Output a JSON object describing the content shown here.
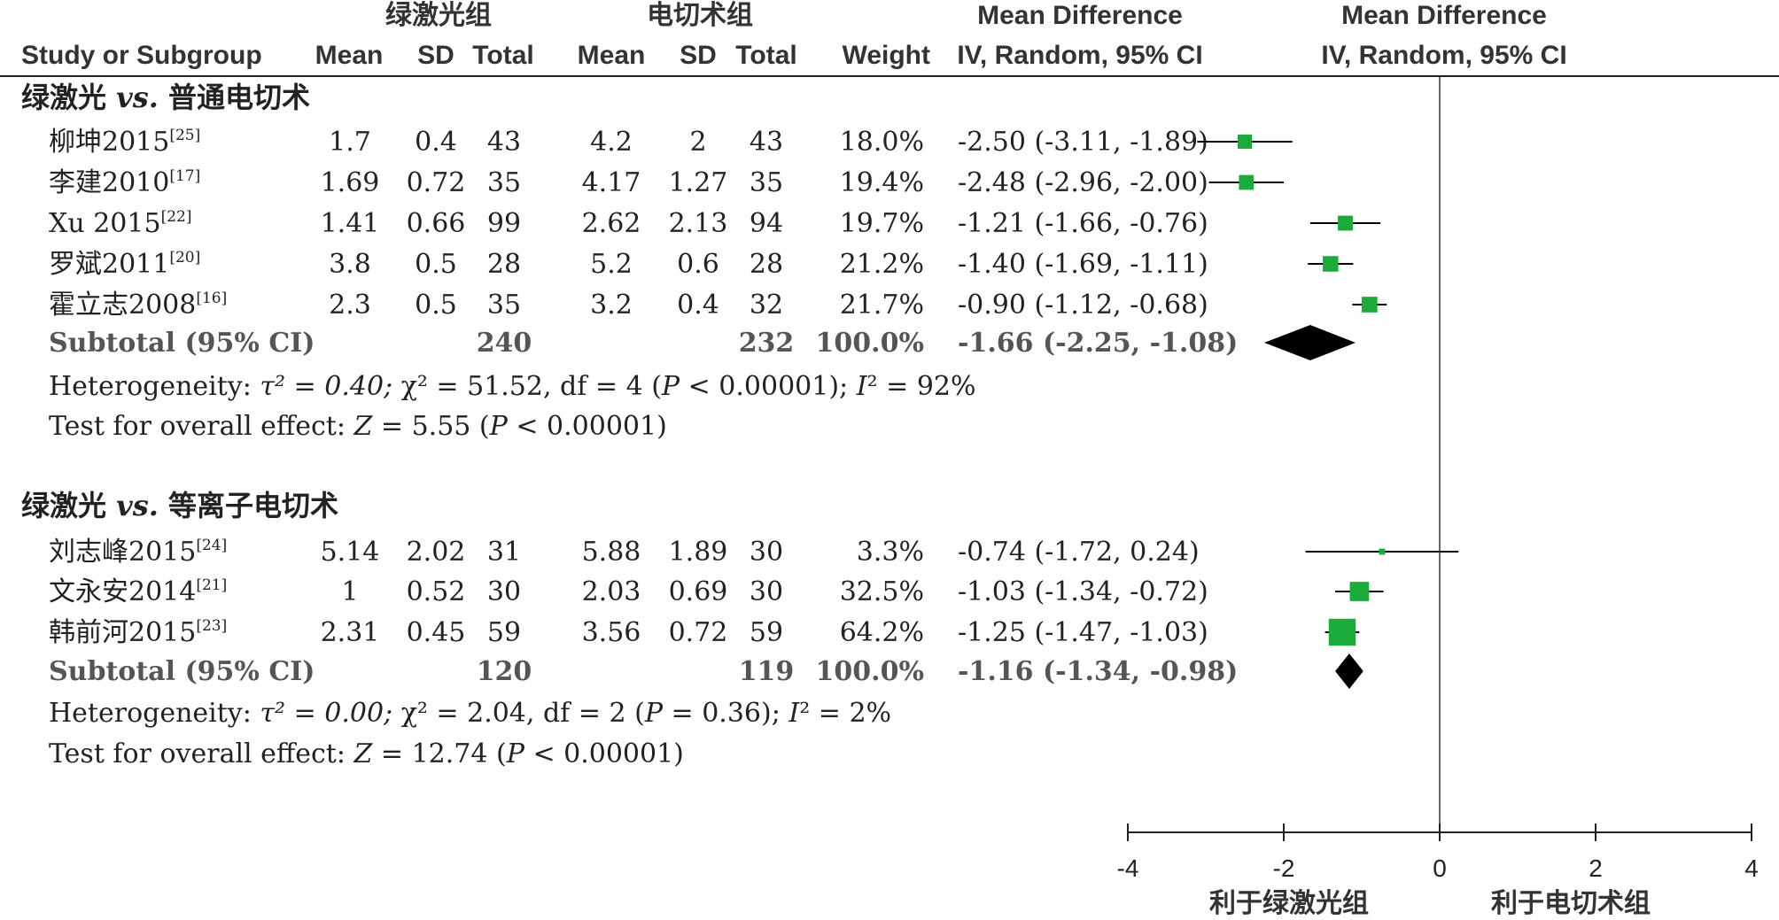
{
  "header": {
    "study_col": "Study or Subgroup",
    "group1_name": "绿激光组",
    "group2_name": "电切术组",
    "mean": "Mean",
    "sd": "SD",
    "total": "Total",
    "weight": "Weight",
    "md_title": "Mean Difference",
    "md_method": "IV, Random, 95% CI",
    "plot_title": "Mean Difference",
    "plot_method": "IV, Random, 95% CI"
  },
  "groups": [
    {
      "title_pre": "绿激光 ",
      "title_vs": "vs.",
      "title_post": " 普通电切术",
      "studies": [
        {
          "name": "柳坤2015",
          "ref": "[25]",
          "m1": "1.7",
          "sd1": "0.4",
          "n1": "43",
          "m2": "4.2",
          "sd2": "2",
          "n2": "43",
          "weight": "18.0%",
          "ci": "-2.50 (-3.11, -1.89)",
          "md": -2.5,
          "lo": -3.11,
          "hi": -1.89,
          "w": 18.0
        },
        {
          "name": "李建2010",
          "ref": "[17]",
          "m1": "1.69",
          "sd1": "0.72",
          "n1": "35",
          "m2": "4.17",
          "sd2": "1.27",
          "n2": "35",
          "weight": "19.4%",
          "ci": "-2.48 (-2.96, -2.00)",
          "md": -2.48,
          "lo": -2.96,
          "hi": -2.0,
          "w": 19.4
        },
        {
          "name": "Xu 2015",
          "ref": "[22]",
          "m1": "1.41",
          "sd1": "0.66",
          "n1": "99",
          "m2": "2.62",
          "sd2": "2.13",
          "n2": "94",
          "weight": "19.7%",
          "ci": "-1.21 (-1.66, -0.76)",
          "md": -1.21,
          "lo": -1.66,
          "hi": -0.76,
          "w": 19.7
        },
        {
          "name": "罗斌2011",
          "ref": "[20]",
          "m1": "3.8",
          "sd1": "0.5",
          "n1": "28",
          "m2": "5.2",
          "sd2": "0.6",
          "n2": "28",
          "weight": "21.2%",
          "ci": "-1.40 (-1.69, -1.11)",
          "md": -1.4,
          "lo": -1.69,
          "hi": -1.11,
          "w": 21.2
        },
        {
          "name": "霍立志2008",
          "ref": "[16]",
          "m1": "2.3",
          "sd1": "0.5",
          "n1": "35",
          "m2": "3.2",
          "sd2": "0.4",
          "n2": "32",
          "weight": "21.7%",
          "ci": "-0.90 (-1.12, -0.68)",
          "md": -0.9,
          "lo": -1.12,
          "hi": -0.68,
          "w": 21.7
        }
      ],
      "subtotal": {
        "label": "Subtotal (95% CI)",
        "n1": "240",
        "n2": "232",
        "weight": "100.0%",
        "ci": "-1.66 (-2.25, -1.08)",
        "md": -1.66,
        "lo": -2.25,
        "hi": -1.08
      },
      "het": {
        "a": "Heterogeneity: ",
        "tau": "τ² = 0.40; ",
        "chi": "χ² = 51.52, df = 4 (",
        "p": "P",
        "p_val": " < 0.00001); ",
        "i": "I",
        "i_val": "² = 92%"
      },
      "test": {
        "a": "Test for overall effect: ",
        "z": "Z",
        "z_val": " = 5.55 (",
        "p": "P",
        "p_val": " < 0.00001)"
      }
    },
    {
      "title_pre": "绿激光 ",
      "title_vs": "vs.",
      "title_post": " 等离子电切术",
      "studies": [
        {
          "name": "刘志峰2015",
          "ref": "[24]",
          "m1": "5.14",
          "sd1": "2.02",
          "n1": "31",
          "m2": "5.88",
          "sd2": "1.89",
          "n2": "30",
          "weight": "3.3%",
          "ci": "-0.74 (-1.72, 0.24)",
          "md": -0.74,
          "lo": -1.72,
          "hi": 0.24,
          "w": 3.3
        },
        {
          "name": "文永安2014",
          "ref": "[21]",
          "m1": "1",
          "sd1": "0.52",
          "n1": "30",
          "m2": "2.03",
          "sd2": "0.69",
          "n2": "30",
          "weight": "32.5%",
          "ci": "-1.03 (-1.34, -0.72)",
          "md": -1.03,
          "lo": -1.34,
          "hi": -0.72,
          "w": 32.5
        },
        {
          "name": "韩前河2015",
          "ref": "[23]",
          "m1": "2.31",
          "sd1": "0.45",
          "n1": "59",
          "m2": "3.56",
          "sd2": "0.72",
          "n2": "59",
          "weight": "64.2%",
          "ci": "-1.25 (-1.47, -1.03)",
          "md": -1.25,
          "lo": -1.47,
          "hi": -1.03,
          "w": 64.2
        }
      ],
      "subtotal": {
        "label": "Subtotal (95% CI)",
        "n1": "120",
        "n2": "119",
        "weight": "100.0%",
        "ci": "-1.16 (-1.34, -0.98)",
        "md": -1.16,
        "lo": -1.34,
        "hi": -0.98
      },
      "het": {
        "a": "Heterogeneity: ",
        "tau": "τ² = 0.00; ",
        "chi": "χ² = 2.04, df = 2 (",
        "p": "P",
        "p_val": " = 0.36); ",
        "i": "I",
        "i_val": "² = 2%"
      },
      "test": {
        "a": "Test for overall effect: ",
        "z": "Z",
        "z_val": " = 12.74 (",
        "p": "P",
        "p_val": " < 0.00001)"
      }
    }
  ],
  "axis": {
    "ticks": [
      -4,
      -2,
      0,
      2,
      4
    ],
    "tick_labels": [
      "-4",
      "-2",
      "0",
      "2",
      "4"
    ],
    "favours_left": "利于绿激光组",
    "favours_right": "利于电切术组"
  },
  "colors": {
    "square": "#1aab3a",
    "diamond": "#000000",
    "line": "#000000"
  },
  "chart_data": {
    "type": "forest",
    "xlim": [
      -4,
      4
    ],
    "x_label": "Mean Difference IV, Random, 95% CI",
    "subgroups": [
      {
        "name": "绿激光 vs. 普通电切术",
        "points": [
          {
            "study": "柳坤2015",
            "md": -2.5,
            "lo": -3.11,
            "hi": -1.89,
            "weight": 18.0
          },
          {
            "study": "李建2010",
            "md": -2.48,
            "lo": -2.96,
            "hi": -2.0,
            "weight": 19.4
          },
          {
            "study": "Xu 2015",
            "md": -1.21,
            "lo": -1.66,
            "hi": -0.76,
            "weight": 19.7
          },
          {
            "study": "罗斌2011",
            "md": -1.4,
            "lo": -1.69,
            "hi": -1.11,
            "weight": 21.2
          },
          {
            "study": "霍立志2008",
            "md": -0.9,
            "lo": -1.12,
            "hi": -0.68,
            "weight": 21.7
          }
        ],
        "pooled": {
          "md": -1.66,
          "lo": -2.25,
          "hi": -1.08
        }
      },
      {
        "name": "绿激光 vs. 等离子电切术",
        "points": [
          {
            "study": "刘志峰2015",
            "md": -0.74,
            "lo": -1.72,
            "hi": 0.24,
            "weight": 3.3
          },
          {
            "study": "文永安2014",
            "md": -1.03,
            "lo": -1.34,
            "hi": -0.72,
            "weight": 32.5
          },
          {
            "study": "韩前河2015",
            "md": -1.25,
            "lo": -1.47,
            "hi": -1.03,
            "weight": 64.2
          }
        ],
        "pooled": {
          "md": -1.16,
          "lo": -1.34,
          "hi": -0.98
        }
      }
    ]
  }
}
